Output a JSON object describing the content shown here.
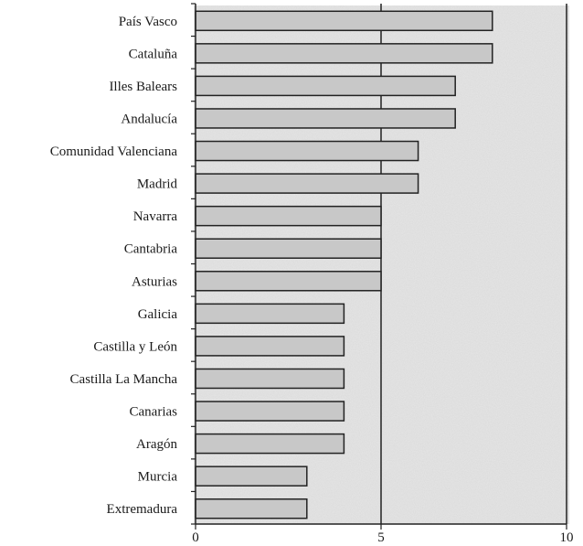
{
  "chart_data": {
    "type": "bar",
    "orientation": "horizontal",
    "categories": [
      "País Vasco",
      "Cataluña",
      "Illes Balears",
      "Andalucía",
      "Comunidad Valenciana",
      "Madrid",
      "Navarra",
      "Cantabria",
      "Asturias",
      "Galicia",
      "Castilla y León",
      "Castilla La Mancha",
      "Canarias",
      "Aragón",
      "Murcia",
      "Extremadura"
    ],
    "values": [
      8,
      8,
      7,
      7,
      6,
      6,
      5,
      5,
      5,
      4,
      4,
      4,
      4,
      4,
      3,
      3
    ],
    "xlim": [
      0,
      10
    ],
    "xticks": [
      0,
      5,
      10
    ],
    "xtick_labels": [
      "0",
      "5",
      "10"
    ],
    "title": "",
    "xlabel": "",
    "ylabel": "",
    "grid": "vertical gridlines at each major tick",
    "legend": "none",
    "colors": {
      "bar_fill": "#c8c8c8",
      "bar_stroke": "#222222",
      "plot_background": "#e6e6e6",
      "axis": "#222222"
    }
  }
}
